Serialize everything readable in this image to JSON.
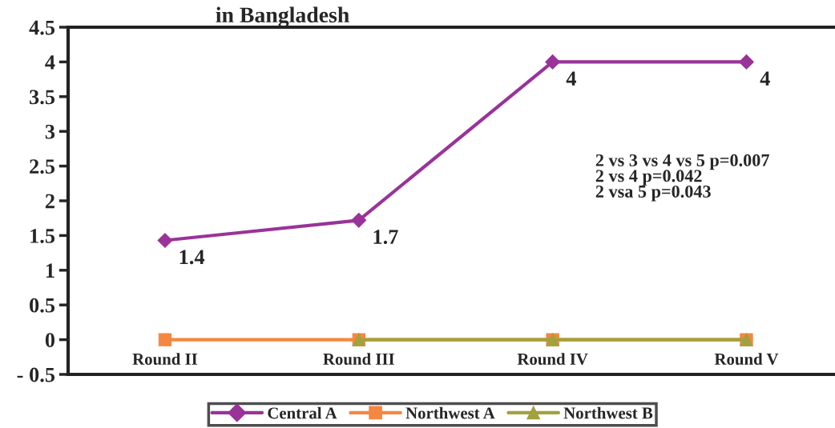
{
  "chart_data": {
    "type": "line",
    "title": "in Bangladesh",
    "categories": [
      "Round II",
      "Round III",
      "Round IV",
      "Round V"
    ],
    "series": [
      {
        "name": "Central A",
        "color": "#993399",
        "marker": "diamond",
        "values": [
          1.43,
          1.72,
          4,
          4
        ],
        "value_labels": [
          "1.4",
          "1.7",
          "4",
          "4"
        ]
      },
      {
        "name": "Northwest A",
        "color": "#f58742",
        "marker": "square",
        "values": [
          0,
          0,
          0,
          0
        ]
      },
      {
        "name": "Northwest B",
        "color": "#a3a13f",
        "marker": "triangle",
        "values": [
          null,
          0,
          0,
          0
        ]
      }
    ],
    "ylim": [
      -0.5,
      4.5
    ],
    "yticks": [
      {
        "value": -0.5,
        "label": "- 0.5"
      },
      0,
      0.5,
      1,
      1.5,
      2,
      2.5,
      3,
      3.5,
      4,
      4.5
    ],
    "annotations": [
      "2 vs 3 vs 4 vs 5 p=0.007",
      "2 vs 4 p=0.042",
      "2 vsa 5 p=0.043"
    ],
    "legend": "bottom",
    "grid": false,
    "line_style": "solid"
  }
}
